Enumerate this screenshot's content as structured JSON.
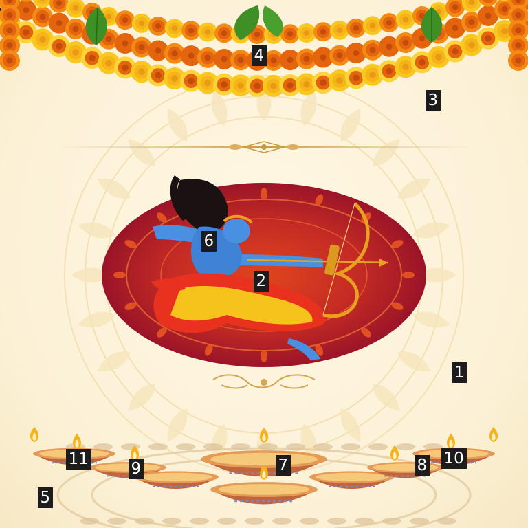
{
  "scene": {
    "labels": [
      "1",
      "2",
      "3",
      "4",
      "5",
      "6",
      "7",
      "8",
      "9",
      "10",
      "11"
    ],
    "colors": {
      "background": "#fdf4dc",
      "marigold_orange": "#f28a14",
      "marigold_yellow": "#f9c81e",
      "leaf": "#3d8f26",
      "disc": "#a9182a",
      "disc_center": "#d23a1f",
      "skin": "#4a90e2",
      "dhoti_red": "#e8321e",
      "dhoti_yellow": "#f6c21c",
      "bow": "#e8a021",
      "diya": "#c0653c",
      "flame": "#f5b21e"
    }
  }
}
